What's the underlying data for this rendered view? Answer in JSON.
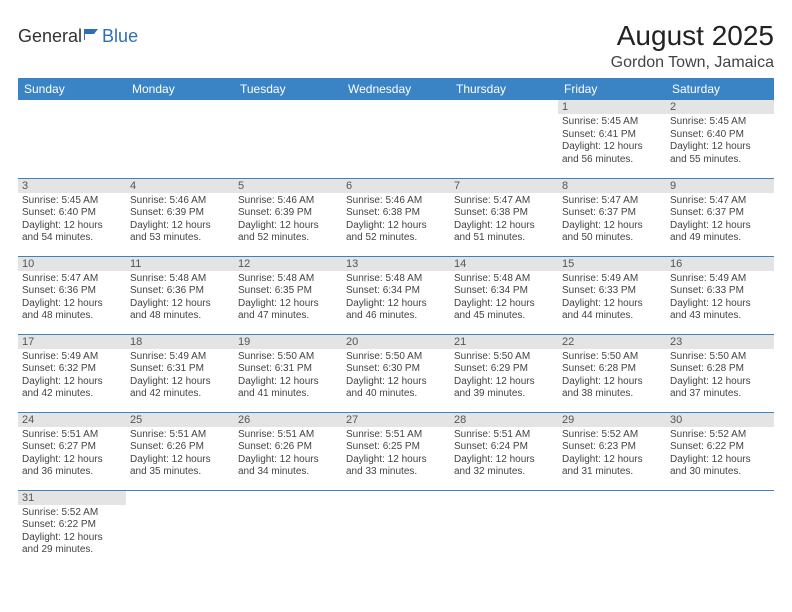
{
  "colors": {
    "header_bg": "#3a84c6",
    "header_text": "#ffffff",
    "daynum_bg": "#e4e4e4",
    "daynum_text": "#555555",
    "cell_border": "#3a84c6",
    "body_text": "#444444",
    "logo_blue": "#2f6fb3"
  },
  "typography": {
    "title_fontsize": 28,
    "location_fontsize": 16,
    "header_fontsize": 12,
    "daynum_fontsize": 11,
    "content_fontsize": 10
  },
  "logo": {
    "part1": "General",
    "part2": "Blue"
  },
  "title": "August 2025",
  "location": "Gordon Town, Jamaica",
  "weekdays": [
    "Sunday",
    "Monday",
    "Tuesday",
    "Wednesday",
    "Thursday",
    "Friday",
    "Saturday"
  ],
  "weeks": [
    [
      {
        "day": "",
        "lines": [
          "",
          "",
          "",
          ""
        ]
      },
      {
        "day": "",
        "lines": [
          "",
          "",
          "",
          ""
        ]
      },
      {
        "day": "",
        "lines": [
          "",
          "",
          "",
          ""
        ]
      },
      {
        "day": "",
        "lines": [
          "",
          "",
          "",
          ""
        ]
      },
      {
        "day": "",
        "lines": [
          "",
          "",
          "",
          ""
        ]
      },
      {
        "day": "1",
        "lines": [
          "Sunrise: 5:45 AM",
          "Sunset: 6:41 PM",
          "Daylight: 12 hours",
          "and 56 minutes."
        ]
      },
      {
        "day": "2",
        "lines": [
          "Sunrise: 5:45 AM",
          "Sunset: 6:40 PM",
          "Daylight: 12 hours",
          "and 55 minutes."
        ]
      }
    ],
    [
      {
        "day": "3",
        "lines": [
          "Sunrise: 5:45 AM",
          "Sunset: 6:40 PM",
          "Daylight: 12 hours",
          "and 54 minutes."
        ]
      },
      {
        "day": "4",
        "lines": [
          "Sunrise: 5:46 AM",
          "Sunset: 6:39 PM",
          "Daylight: 12 hours",
          "and 53 minutes."
        ]
      },
      {
        "day": "5",
        "lines": [
          "Sunrise: 5:46 AM",
          "Sunset: 6:39 PM",
          "Daylight: 12 hours",
          "and 52 minutes."
        ]
      },
      {
        "day": "6",
        "lines": [
          "Sunrise: 5:46 AM",
          "Sunset: 6:38 PM",
          "Daylight: 12 hours",
          "and 52 minutes."
        ]
      },
      {
        "day": "7",
        "lines": [
          "Sunrise: 5:47 AM",
          "Sunset: 6:38 PM",
          "Daylight: 12 hours",
          "and 51 minutes."
        ]
      },
      {
        "day": "8",
        "lines": [
          "Sunrise: 5:47 AM",
          "Sunset: 6:37 PM",
          "Daylight: 12 hours",
          "and 50 minutes."
        ]
      },
      {
        "day": "9",
        "lines": [
          "Sunrise: 5:47 AM",
          "Sunset: 6:37 PM",
          "Daylight: 12 hours",
          "and 49 minutes."
        ]
      }
    ],
    [
      {
        "day": "10",
        "lines": [
          "Sunrise: 5:47 AM",
          "Sunset: 6:36 PM",
          "Daylight: 12 hours",
          "and 48 minutes."
        ]
      },
      {
        "day": "11",
        "lines": [
          "Sunrise: 5:48 AM",
          "Sunset: 6:36 PM",
          "Daylight: 12 hours",
          "and 48 minutes."
        ]
      },
      {
        "day": "12",
        "lines": [
          "Sunrise: 5:48 AM",
          "Sunset: 6:35 PM",
          "Daylight: 12 hours",
          "and 47 minutes."
        ]
      },
      {
        "day": "13",
        "lines": [
          "Sunrise: 5:48 AM",
          "Sunset: 6:34 PM",
          "Daylight: 12 hours",
          "and 46 minutes."
        ]
      },
      {
        "day": "14",
        "lines": [
          "Sunrise: 5:48 AM",
          "Sunset: 6:34 PM",
          "Daylight: 12 hours",
          "and 45 minutes."
        ]
      },
      {
        "day": "15",
        "lines": [
          "Sunrise: 5:49 AM",
          "Sunset: 6:33 PM",
          "Daylight: 12 hours",
          "and 44 minutes."
        ]
      },
      {
        "day": "16",
        "lines": [
          "Sunrise: 5:49 AM",
          "Sunset: 6:33 PM",
          "Daylight: 12 hours",
          "and 43 minutes."
        ]
      }
    ],
    [
      {
        "day": "17",
        "lines": [
          "Sunrise: 5:49 AM",
          "Sunset: 6:32 PM",
          "Daylight: 12 hours",
          "and 42 minutes."
        ]
      },
      {
        "day": "18",
        "lines": [
          "Sunrise: 5:49 AM",
          "Sunset: 6:31 PM",
          "Daylight: 12 hours",
          "and 42 minutes."
        ]
      },
      {
        "day": "19",
        "lines": [
          "Sunrise: 5:50 AM",
          "Sunset: 6:31 PM",
          "Daylight: 12 hours",
          "and 41 minutes."
        ]
      },
      {
        "day": "20",
        "lines": [
          "Sunrise: 5:50 AM",
          "Sunset: 6:30 PM",
          "Daylight: 12 hours",
          "and 40 minutes."
        ]
      },
      {
        "day": "21",
        "lines": [
          "Sunrise: 5:50 AM",
          "Sunset: 6:29 PM",
          "Daylight: 12 hours",
          "and 39 minutes."
        ]
      },
      {
        "day": "22",
        "lines": [
          "Sunrise: 5:50 AM",
          "Sunset: 6:28 PM",
          "Daylight: 12 hours",
          "and 38 minutes."
        ]
      },
      {
        "day": "23",
        "lines": [
          "Sunrise: 5:50 AM",
          "Sunset: 6:28 PM",
          "Daylight: 12 hours",
          "and 37 minutes."
        ]
      }
    ],
    [
      {
        "day": "24",
        "lines": [
          "Sunrise: 5:51 AM",
          "Sunset: 6:27 PM",
          "Daylight: 12 hours",
          "and 36 minutes."
        ]
      },
      {
        "day": "25",
        "lines": [
          "Sunrise: 5:51 AM",
          "Sunset: 6:26 PM",
          "Daylight: 12 hours",
          "and 35 minutes."
        ]
      },
      {
        "day": "26",
        "lines": [
          "Sunrise: 5:51 AM",
          "Sunset: 6:26 PM",
          "Daylight: 12 hours",
          "and 34 minutes."
        ]
      },
      {
        "day": "27",
        "lines": [
          "Sunrise: 5:51 AM",
          "Sunset: 6:25 PM",
          "Daylight: 12 hours",
          "and 33 minutes."
        ]
      },
      {
        "day": "28",
        "lines": [
          "Sunrise: 5:51 AM",
          "Sunset: 6:24 PM",
          "Daylight: 12 hours",
          "and 32 minutes."
        ]
      },
      {
        "day": "29",
        "lines": [
          "Sunrise: 5:52 AM",
          "Sunset: 6:23 PM",
          "Daylight: 12 hours",
          "and 31 minutes."
        ]
      },
      {
        "day": "30",
        "lines": [
          "Sunrise: 5:52 AM",
          "Sunset: 6:22 PM",
          "Daylight: 12 hours",
          "and 30 minutes."
        ]
      }
    ],
    [
      {
        "day": "31",
        "lines": [
          "Sunrise: 5:52 AM",
          "Sunset: 6:22 PM",
          "Daylight: 12 hours",
          "and 29 minutes."
        ]
      },
      {
        "day": "",
        "lines": [
          "",
          "",
          "",
          ""
        ]
      },
      {
        "day": "",
        "lines": [
          "",
          "",
          "",
          ""
        ]
      },
      {
        "day": "",
        "lines": [
          "",
          "",
          "",
          ""
        ]
      },
      {
        "day": "",
        "lines": [
          "",
          "",
          "",
          ""
        ]
      },
      {
        "day": "",
        "lines": [
          "",
          "",
          "",
          ""
        ]
      },
      {
        "day": "",
        "lines": [
          "",
          "",
          "",
          ""
        ]
      }
    ]
  ]
}
